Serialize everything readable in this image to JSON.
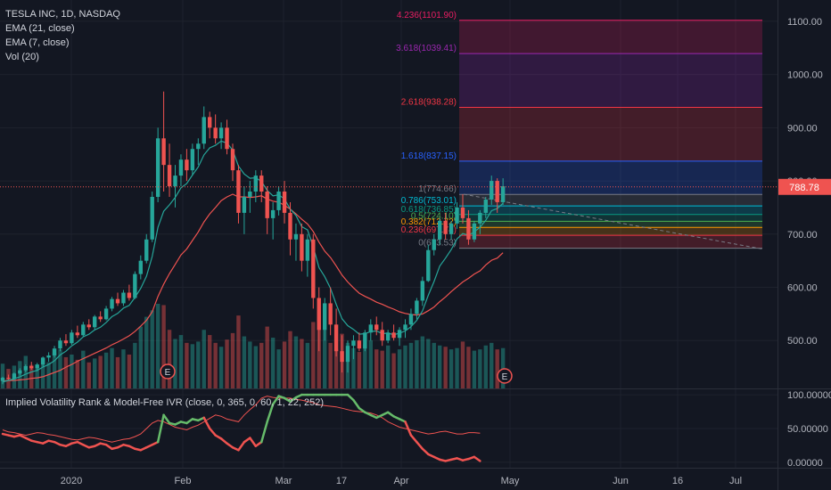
{
  "header": {
    "title": "TESLA INC, 1D, NASDAQ",
    "indicators": [
      "EMA (21, close)",
      "EMA (7, close)",
      "Vol (20)"
    ]
  },
  "ivr_panel": {
    "title": "Implied Volatility Rank & Model-Free IVR (close, 0, 365, 0, 60, 1, 22, 252)"
  },
  "colors": {
    "background": "#131722",
    "up": "#26a69a",
    "down": "#ef5350",
    "ema7": "#26a69a",
    "ema21": "#ef5350",
    "ivr_thin": "#d1d4dc",
    "last_price_bg": "#ef5350"
  },
  "chart_data": [
    {
      "type": "candlestick",
      "title": "TESLA INC, 1D, NASDAQ",
      "y_axis": {
        "ticks": [
          "500.00",
          "600.00",
          "700.00",
          "800.00",
          "900.00",
          "1000.00",
          "1100.00"
        ],
        "range": [
          410,
          1140
        ]
      },
      "x_axis": {
        "labels": [
          "2020",
          "Feb",
          "Mar",
          "17",
          "Apr",
          "May",
          "Jun",
          "16",
          "Jul"
        ]
      },
      "last_price": "788.78",
      "candles": [
        [
          424,
          432,
          418,
          430
        ],
        [
          430,
          436,
          426,
          428
        ],
        [
          428,
          440,
          425,
          438
        ],
        [
          438,
          448,
          434,
          444
        ],
        [
          444,
          455,
          440,
          452
        ],
        [
          452,
          460,
          445,
          448
        ],
        [
          448,
          458,
          442,
          455
        ],
        [
          455,
          470,
          450,
          468
        ],
        [
          468,
          478,
          460,
          472
        ],
        [
          472,
          490,
          468,
          485
        ],
        [
          485,
          505,
          480,
          500
        ],
        [
          500,
          512,
          490,
          495
        ],
        [
          495,
          520,
          492,
          515
        ],
        [
          515,
          528,
          505,
          510
        ],
        [
          510,
          535,
          508,
          530
        ],
        [
          530,
          540,
          520,
          525
        ],
        [
          525,
          548,
          520,
          545
        ],
        [
          545,
          555,
          535,
          540
        ],
        [
          540,
          565,
          538,
          560
        ],
        [
          560,
          582,
          555,
          578
        ],
        [
          578,
          590,
          565,
          570
        ],
        [
          570,
          595,
          565,
          590
        ],
        [
          590,
          605,
          575,
          580
        ],
        [
          580,
          630,
          578,
          625
        ],
        [
          625,
          660,
          615,
          650
        ],
        [
          650,
          700,
          645,
          690
        ],
        [
          690,
          780,
          685,
          770
        ],
        [
          770,
          900,
          760,
          880
        ],
        [
          880,
          968,
          780,
          830
        ],
        [
          830,
          870,
          770,
          790
        ],
        [
          790,
          830,
          750,
          810
        ],
        [
          810,
          850,
          790,
          840
        ],
        [
          840,
          860,
          800,
          820
        ],
        [
          820,
          870,
          810,
          860
        ],
        [
          860,
          880,
          830,
          870
        ],
        [
          870,
          940,
          860,
          920
        ],
        [
          920,
          930,
          880,
          900
        ],
        [
          900,
          925,
          870,
          880
        ],
        [
          880,
          910,
          860,
          900
        ],
        [
          900,
          915,
          850,
          860
        ],
        [
          860,
          870,
          800,
          820
        ],
        [
          820,
          830,
          720,
          740
        ],
        [
          740,
          790,
          700,
          770
        ],
        [
          770,
          800,
          740,
          780
        ],
        [
          780,
          820,
          760,
          810
        ],
        [
          810,
          820,
          760,
          780
        ],
        [
          780,
          790,
          700,
          730
        ],
        [
          730,
          760,
          690,
          745
        ],
        [
          745,
          790,
          735,
          780
        ],
        [
          780,
          800,
          720,
          740
        ],
        [
          740,
          760,
          660,
          690
        ],
        [
          690,
          720,
          650,
          700
        ],
        [
          700,
          720,
          630,
          650
        ],
        [
          650,
          700,
          620,
          690
        ],
        [
          690,
          700,
          560,
          580
        ],
        [
          580,
          600,
          480,
          520
        ],
        [
          520,
          580,
          500,
          570
        ],
        [
          570,
          600,
          510,
          530
        ],
        [
          530,
          560,
          470,
          480
        ],
        [
          480,
          510,
          440,
          460
        ],
        [
          460,
          500,
          440,
          490
        ],
        [
          490,
          510,
          465,
          500
        ],
        [
          500,
          515,
          480,
          485
        ],
        [
          485,
          520,
          480,
          515
        ],
        [
          515,
          540,
          500,
          530
        ],
        [
          530,
          545,
          510,
          520
        ],
        [
          520,
          535,
          490,
          500
        ],
        [
          500,
          520,
          495,
          515
        ],
        [
          515,
          530,
          500,
          505
        ],
        [
          505,
          525,
          490,
          520
        ],
        [
          520,
          540,
          505,
          530
        ],
        [
          530,
          560,
          520,
          550
        ],
        [
          550,
          580,
          540,
          575
        ],
        [
          575,
          620,
          565,
          612
        ],
        [
          612,
          680,
          610,
          670
        ],
        [
          670,
          700,
          660,
          690
        ],
        [
          690,
          730,
          680,
          725
        ],
        [
          725,
          740,
          690,
          700
        ],
        [
          700,
          725,
          690,
          720
        ],
        [
          720,
          760,
          710,
          750
        ],
        [
          750,
          775,
          720,
          730
        ],
        [
          730,
          745,
          680,
          690
        ],
        [
          690,
          725,
          685,
          720
        ],
        [
          720,
          745,
          700,
          740
        ],
        [
          740,
          770,
          730,
          765
        ],
        [
          765,
          810,
          755,
          800
        ],
        [
          800,
          805,
          740,
          760
        ],
        [
          760,
          805,
          755,
          790
        ]
      ],
      "volumes": [
        38,
        30,
        35,
        42,
        50,
        36,
        32,
        45,
        40,
        55,
        60,
        48,
        52,
        44,
        58,
        40,
        46,
        50,
        55,
        62,
        48,
        60,
        52,
        70,
        95,
        110,
        120,
        130,
        128,
        90,
        76,
        82,
        70,
        68,
        72,
        90,
        82,
        70,
        64,
        75,
        85,
        112,
        80,
        72,
        65,
        70,
        95,
        78,
        60,
        72,
        88,
        80,
        76,
        70,
        102,
        118,
        90,
        70,
        60,
        84,
        70,
        62,
        56,
        68,
        74,
        60,
        58,
        66,
        54,
        60,
        66,
        70,
        74,
        80,
        76,
        70,
        66,
        64,
        60,
        62,
        72,
        64,
        58,
        60,
        66,
        70,
        60,
        62
      ],
      "ema7": [
        422,
        425,
        428,
        432,
        437,
        441,
        444,
        450,
        455,
        462,
        473,
        480,
        490,
        497,
        507,
        512,
        520,
        525,
        534,
        545,
        551,
        561,
        566,
        581,
        598,
        621,
        658,
        713,
        743,
        755,
        769,
        787,
        795,
        811,
        826,
        849,
        862,
        867,
        875,
        871,
        858,
        828,
        813,
        805,
        806,
        799,
        782,
        772,
        774,
        766,
        747,
        735,
        714,
        708,
        676,
        637,
        620,
        598,
        568,
        541,
        528,
        521,
        512,
        513,
        517,
        518,
        513,
        514,
        511,
        514,
        518,
        526,
        538,
        556,
        585,
        611,
        640,
        655,
        671,
        691,
        701,
        698,
        704,
        713,
        726,
        744,
        748,
        758
      ],
      "ema21": [
        424,
        425,
        425,
        426,
        427,
        429,
        430,
        432,
        436,
        440,
        444,
        450,
        455,
        461,
        466,
        471,
        476,
        481,
        486,
        492,
        497,
        503,
        509,
        517,
        527,
        538,
        554,
        583,
        606,
        626,
        643,
        661,
        672,
        688,
        704,
        723,
        738,
        750,
        763,
        770,
        775,
        770,
        770,
        769,
        770,
        772,
        766,
        762,
        760,
        754,
        747,
        738,
        728,
        719,
        705,
        685,
        668,
        656,
        640,
        623,
        610,
        599,
        589,
        583,
        578,
        572,
        568,
        563,
        559,
        554,
        551,
        549,
        548,
        550,
        556,
        563,
        573,
        582,
        592,
        601,
        610,
        617,
        625,
        631,
        642,
        651,
        655,
        665
      ]
    },
    {
      "type": "fibonacci",
      "levels": [
        {
          "ratio": "0",
          "value": 673.53,
          "label": "0(673.53)"
        },
        {
          "ratio": "0.236",
          "value": 697.74,
          "label": "0.236(697.74)"
        },
        {
          "ratio": "0.382",
          "value": 712.72,
          "label": "0.382(712.72)"
        },
        {
          "ratio": "0.5",
          "value": 724.1,
          "label": "0.5(724.10)"
        },
        {
          "ratio": "0.618",
          "value": 736.85,
          "label": "0.618(736.85)"
        },
        {
          "ratio": "0.786",
          "value": 753.01,
          "label": "0.786(753.01)"
        },
        {
          "ratio": "1",
          "value": 774.66,
          "label": "1(774.66)"
        },
        {
          "ratio": "1.618",
          "value": 837.15,
          "label": "1.618(837.15)"
        },
        {
          "ratio": "2.618",
          "value": 938.28,
          "label": "2.618(938.28)"
        },
        {
          "ratio": "3.618",
          "value": 1039.41,
          "label": "3.618(1039.41)"
        },
        {
          "ratio": "4.236",
          "value": 1101.9,
          "label": "4.236(1101.90)"
        }
      ]
    },
    {
      "type": "line",
      "title": "Implied Volatility Rank & Model-Free IVR (close, 0, 365, 0, 60, 1, 22, 252)",
      "y_axis": {
        "ticks": [
          "0.00000",
          "50.00000",
          "100.00000"
        ],
        "range": [
          -8,
          108
        ]
      },
      "series": [
        {
          "values": [
            48,
            45,
            44,
            42,
            40,
            42,
            44,
            43,
            41,
            40,
            38,
            36,
            34,
            33,
            35,
            37,
            36,
            34,
            32,
            30,
            32,
            34,
            35,
            38,
            42,
            50,
            58,
            62,
            60,
            56,
            52,
            50,
            48,
            52,
            55,
            60,
            65,
            70,
            68,
            64,
            62,
            60,
            70,
            78,
            85,
            95,
            98,
            96,
            95,
            95,
            95,
            93,
            92,
            90,
            88,
            85,
            84,
            83,
            82,
            80,
            78,
            76,
            75,
            74,
            73,
            70,
            66,
            60,
            56,
            52,
            50,
            48,
            46,
            44,
            42,
            43,
            45,
            46,
            44,
            42,
            42,
            44,
            44,
            43
          ]
        },
        {
          "values": [
            42,
            40,
            38,
            40,
            36,
            32,
            30,
            28,
            32,
            30,
            26,
            24,
            28,
            30,
            26,
            22,
            24,
            28,
            26,
            20,
            22,
            26,
            24,
            20,
            18,
            22,
            26,
            30,
            70,
            58,
            56,
            60,
            58,
            64,
            62,
            66,
            50,
            40,
            35,
            28,
            22,
            18,
            30,
            36,
            24,
            30,
            60,
            86,
            98,
            95,
            90,
            96,
            100,
            100,
            100,
            100,
            100,
            100,
            100,
            100,
            100,
            92,
            80,
            74,
            70,
            66,
            70,
            74,
            68,
            64,
            60,
            40,
            30,
            20,
            12,
            8,
            4,
            2,
            4,
            6,
            3,
            5,
            8,
            2
          ]
        }
      ]
    }
  ]
}
